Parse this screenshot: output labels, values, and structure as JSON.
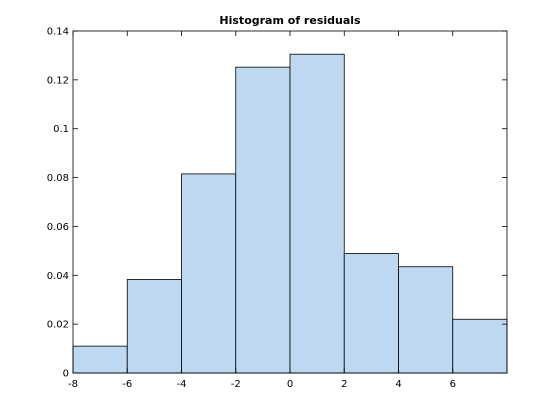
{
  "chart_data": {
    "type": "bar",
    "title": "Histogram of residuals",
    "xlabel": "",
    "ylabel": "",
    "bins": [
      {
        "x0": -8,
        "x1": -6,
        "value": 0.011
      },
      {
        "x0": -6,
        "x1": -4,
        "value": 0.0383
      },
      {
        "x0": -4,
        "x1": -2,
        "value": 0.0815
      },
      {
        "x0": -2,
        "x1": 0,
        "value": 0.1252
      },
      {
        "x0": 0,
        "x1": 2,
        "value": 0.1305
      },
      {
        "x0": 2,
        "x1": 4,
        "value": 0.0489
      },
      {
        "x0": 4,
        "x1": 6,
        "value": 0.0435
      },
      {
        "x0": 6,
        "x1": 8,
        "value": 0.022
      }
    ],
    "xlim": [
      -8,
      8
    ],
    "ylim": [
      0,
      0.14
    ],
    "xticks": [
      -8,
      -6,
      -4,
      -2,
      0,
      2,
      4,
      6
    ],
    "xtick_labels": [
      "-8",
      "-6",
      "-4",
      "-2",
      "0",
      "2",
      "4",
      "6"
    ],
    "yticks": [
      0,
      0.02,
      0.04,
      0.06,
      0.08,
      0.1,
      0.12,
      0.14
    ],
    "ytick_labels": [
      "0",
      "0.02",
      "0.04",
      "0.06",
      "0.08",
      "0.1",
      "0.12",
      "0.14"
    ],
    "grid": false,
    "bar_color": "#bfd8f1"
  }
}
